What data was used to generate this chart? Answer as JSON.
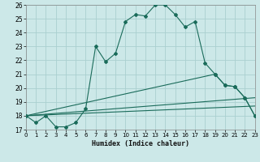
{
  "xlabel": "Humidex (Indice chaleur)",
  "bg_color": "#cce8e8",
  "grid_color": "#aad0d0",
  "line_color": "#1a6b5a",
  "xlim": [
    0,
    23
  ],
  "ylim": [
    17,
    26
  ],
  "xticks": [
    0,
    1,
    2,
    3,
    4,
    5,
    6,
    7,
    8,
    9,
    10,
    11,
    12,
    13,
    14,
    15,
    16,
    17,
    18,
    19,
    20,
    21,
    22,
    23
  ],
  "yticks": [
    17,
    18,
    19,
    20,
    21,
    22,
    23,
    24,
    25,
    26
  ],
  "line1_x": [
    0,
    1,
    2,
    3,
    4,
    5,
    6,
    7,
    8,
    9,
    10,
    11,
    12,
    13,
    14,
    15,
    16,
    17,
    18,
    19,
    20,
    21,
    22,
    23
  ],
  "line1_y": [
    18.0,
    17.5,
    18.0,
    17.2,
    17.2,
    17.5,
    18.5,
    23.0,
    21.9,
    22.5,
    24.8,
    25.3,
    25.2,
    26.0,
    26.0,
    25.3,
    24.4,
    24.8,
    21.8,
    21.0,
    20.2,
    20.1,
    19.3,
    18.0
  ],
  "line2_x": [
    0,
    19,
    20,
    21,
    22,
    23
  ],
  "line2_y": [
    18.0,
    21.0,
    20.2,
    20.1,
    19.3,
    18.0
  ],
  "line3_x": [
    0,
    23
  ],
  "line3_y": [
    18.0,
    19.3
  ],
  "line4_x": [
    0,
    23
  ],
  "line4_y": [
    18.0,
    18.7
  ]
}
